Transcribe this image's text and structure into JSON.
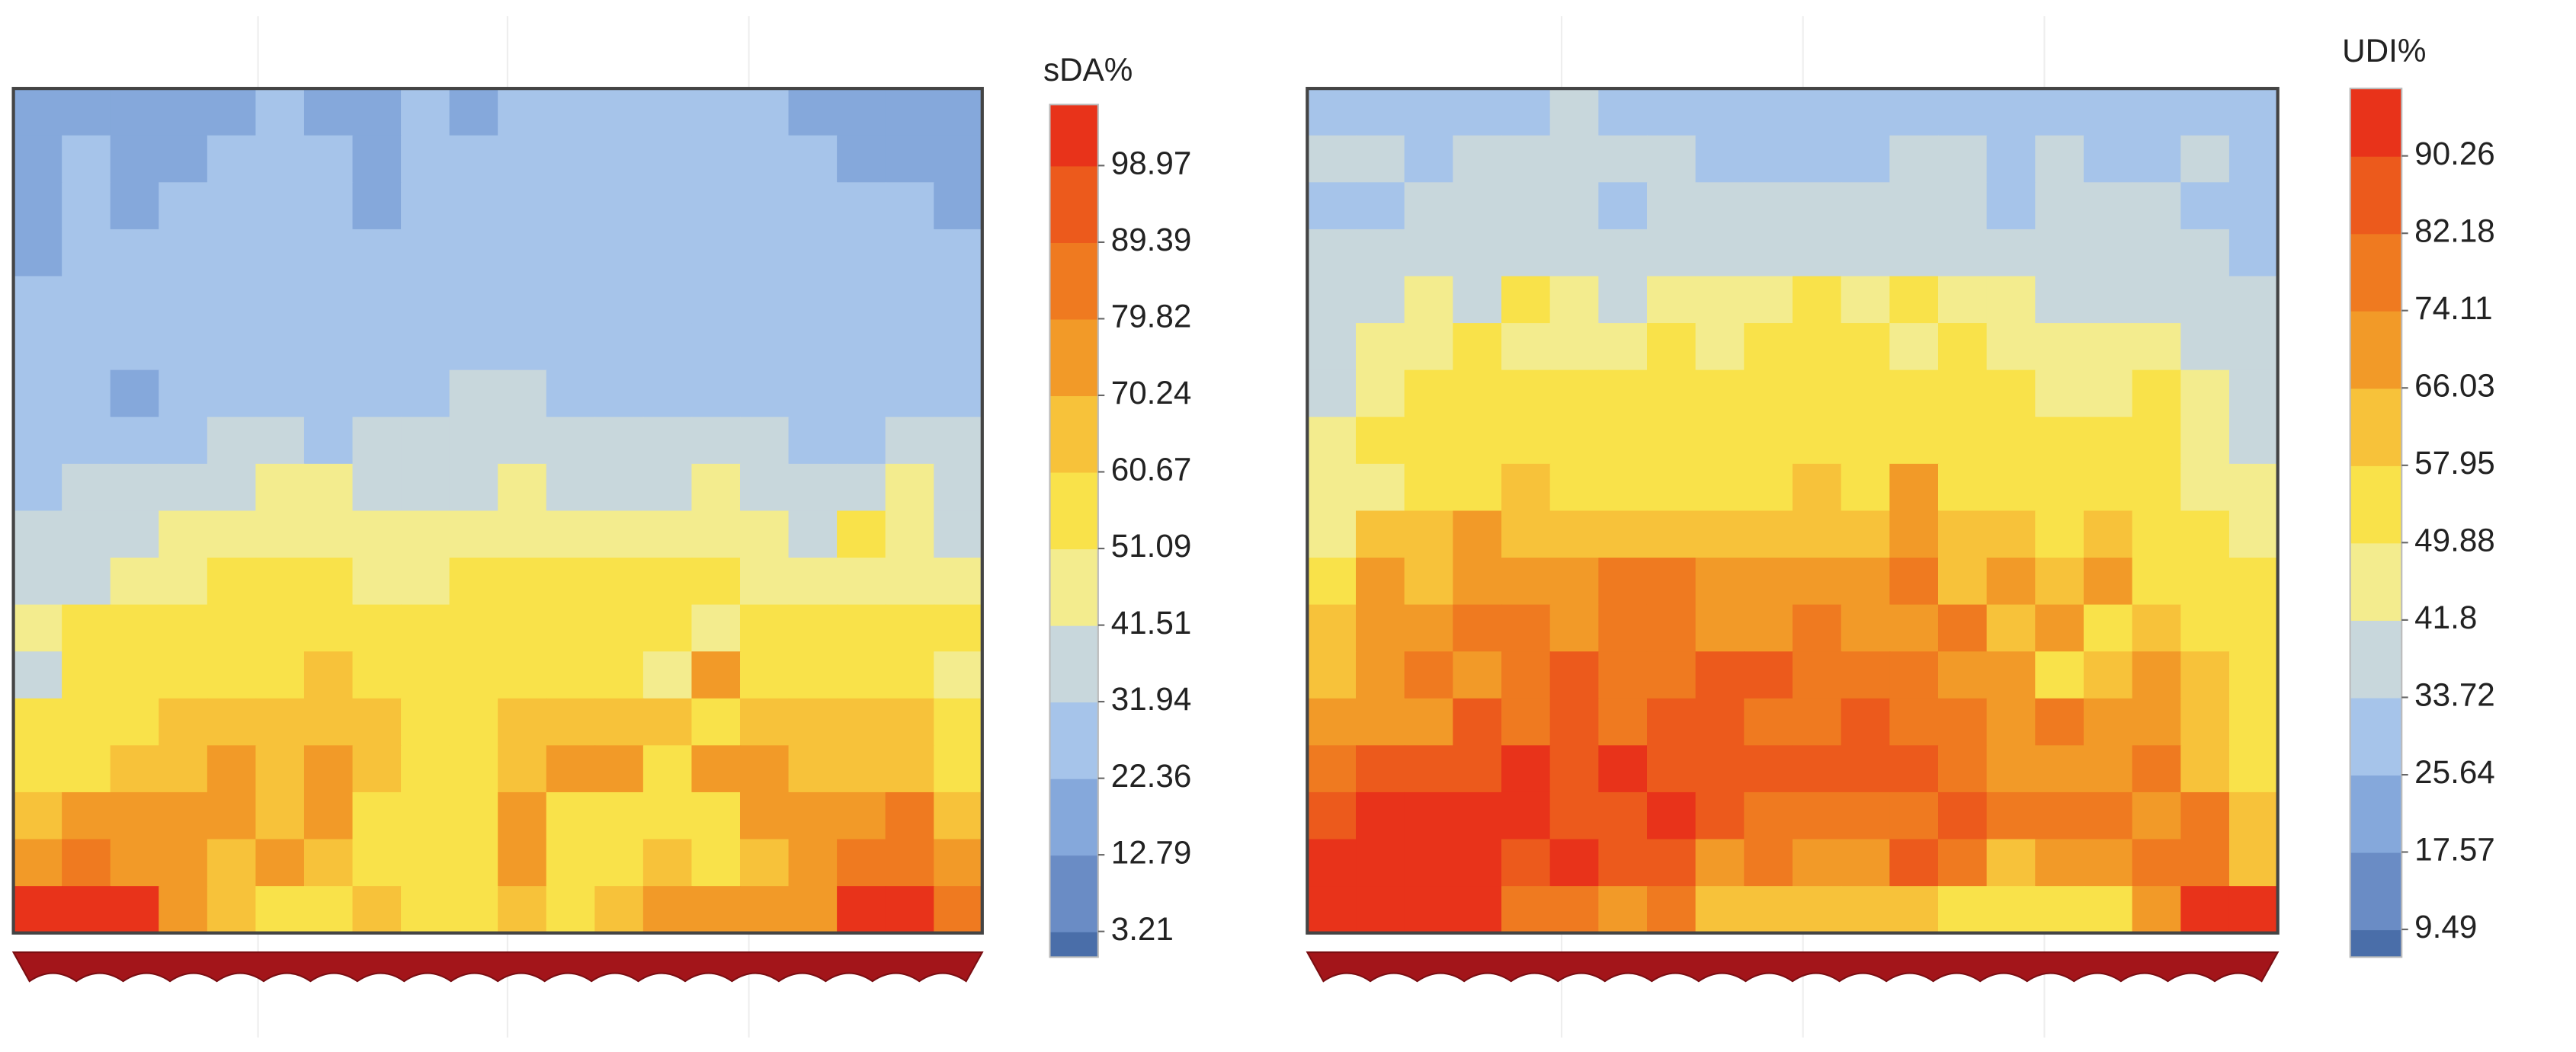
{
  "chart_data": [
    {
      "type": "heatmap",
      "title": "sDA%",
      "clim": [
        0,
        106.6
      ],
      "colorbar_ticks": [
        3.21,
        12.79,
        22.36,
        31.94,
        41.51,
        51.09,
        60.67,
        70.24,
        79.82,
        89.39,
        98.97
      ],
      "colors": [
        "#4a6ea9",
        "#6a8cc5",
        "#85a8db",
        "#a6c4ea",
        "#c8d7dc",
        "#f3ec8e",
        "#f9e24a",
        "#f7c23a",
        "#f29a28",
        "#ef7a20",
        "#ec5a1c",
        "#e8331a"
      ],
      "values": [
        [
          20,
          22,
          18,
          20,
          22,
          25,
          20,
          22,
          25,
          18,
          25,
          25,
          25,
          25,
          25,
          25,
          22,
          20,
          20,
          20
        ],
        [
          22,
          25,
          20,
          22,
          25,
          25,
          25,
          22,
          25,
          25,
          25,
          25,
          25,
          25,
          25,
          25,
          25,
          18,
          22,
          20
        ],
        [
          20,
          25,
          20,
          25,
          25,
          25,
          25,
          18,
          25,
          25,
          25,
          25,
          25,
          28,
          25,
          25,
          25,
          25,
          25,
          22
        ],
        [
          22,
          25,
          25,
          25,
          25,
          28,
          25,
          25,
          28,
          25,
          25,
          25,
          25,
          25,
          25,
          25,
          25,
          25,
          25,
          25
        ],
        [
          25,
          25,
          25,
          28,
          25,
          25,
          28,
          25,
          25,
          25,
          28,
          25,
          25,
          25,
          28,
          25,
          25,
          25,
          28,
          25
        ],
        [
          25,
          28,
          25,
          25,
          28,
          25,
          28,
          28,
          28,
          28,
          25,
          28,
          25,
          28,
          28,
          28,
          28,
          28,
          28,
          28
        ],
        [
          25,
          28,
          22,
          28,
          28,
          30,
          28,
          28,
          28,
          35,
          35,
          28,
          28,
          28,
          28,
          30,
          28,
          28,
          28,
          30
        ],
        [
          28,
          28,
          30,
          30,
          35,
          35,
          30,
          35,
          35,
          35,
          35,
          35,
          35,
          35,
          35,
          35,
          30,
          30,
          35,
          35
        ],
        [
          30,
          35,
          35,
          35,
          35,
          45,
          45,
          35,
          35,
          35,
          45,
          35,
          35,
          35,
          45,
          35,
          35,
          35,
          45,
          35
        ],
        [
          35,
          35,
          35,
          45,
          45,
          45,
          45,
          45,
          45,
          45,
          45,
          45,
          45,
          45,
          45,
          45,
          35,
          55,
          45,
          35
        ],
        [
          35,
          35,
          45,
          45,
          55,
          55,
          55,
          45,
          45,
          55,
          55,
          55,
          55,
          55,
          55,
          45,
          45,
          45,
          45,
          45
        ],
        [
          45,
          55,
          55,
          55,
          55,
          55,
          55,
          55,
          55,
          55,
          55,
          55,
          55,
          55,
          45,
          55,
          55,
          55,
          55,
          55
        ],
        [
          35,
          55,
          55,
          55,
          55,
          55,
          65,
          55,
          55,
          55,
          55,
          55,
          55,
          45,
          75,
          55,
          55,
          55,
          55,
          45
        ],
        [
          55,
          55,
          55,
          65,
          65,
          65,
          70,
          65,
          55,
          55,
          65,
          65,
          65,
          65,
          55,
          65,
          65,
          65,
          65,
          55
        ],
        [
          55,
          55,
          65,
          65,
          75,
          65,
          75,
          65,
          55,
          55,
          65,
          75,
          75,
          55,
          75,
          75,
          65,
          65,
          65,
          55
        ],
        [
          65,
          75,
          75,
          75,
          75,
          65,
          75,
          55,
          55,
          55,
          75,
          55,
          55,
          55,
          55,
          75,
          75,
          75,
          80,
          65
        ],
        [
          75,
          80,
          75,
          75,
          65,
          75,
          65,
          55,
          55,
          55,
          75,
          55,
          55,
          65,
          55,
          65,
          75,
          80,
          80,
          75
        ],
        [
          100,
          100,
          100,
          75,
          65,
          55,
          55,
          65,
          55,
          55,
          65,
          55,
          65,
          75,
          75,
          75,
          75,
          100,
          100,
          80
        ]
      ]
    },
    {
      "type": "heatmap",
      "title": "UDI%",
      "clim": [
        6.6,
        97.3
      ],
      "colorbar_ticks": [
        9.49,
        17.57,
        25.64,
        33.72,
        41.8,
        49.88,
        57.95,
        66.03,
        74.11,
        82.18,
        90.26
      ],
      "colors": [
        "#4a6ea9",
        "#6a8cc5",
        "#85a8db",
        "#a6c4ea",
        "#c8d7dc",
        "#f3ec8e",
        "#f9e24a",
        "#f7c23a",
        "#f29a28",
        "#ef7a20",
        "#ec5a1c",
        "#e8331a"
      ],
      "values": [
        [
          30,
          30,
          30,
          30,
          30,
          38,
          30,
          30,
          30,
          30,
          30,
          30,
          30,
          30,
          30,
          30,
          30,
          30,
          30,
          30
        ],
        [
          38,
          38,
          30,
          38,
          38,
          38,
          38,
          38,
          30,
          30,
          30,
          30,
          38,
          38,
          30,
          38,
          30,
          30,
          38,
          30
        ],
        [
          30,
          30,
          38,
          38,
          38,
          38,
          30,
          38,
          38,
          38,
          38,
          38,
          38,
          38,
          30,
          38,
          38,
          38,
          30,
          30
        ],
        [
          38,
          38,
          38,
          38,
          38,
          38,
          38,
          38,
          38,
          38,
          38,
          38,
          38,
          38,
          38,
          38,
          38,
          38,
          38,
          30
        ],
        [
          38,
          38,
          45,
          38,
          54,
          45,
          38,
          45,
          45,
          45,
          54,
          45,
          54,
          45,
          45,
          38,
          38,
          38,
          38,
          38
        ],
        [
          38,
          45,
          45,
          54,
          45,
          45,
          45,
          54,
          45,
          54,
          54,
          54,
          45,
          54,
          45,
          45,
          45,
          45,
          38,
          38
        ],
        [
          38,
          45,
          54,
          54,
          54,
          54,
          54,
          54,
          54,
          54,
          54,
          54,
          54,
          54,
          54,
          45,
          45,
          54,
          45,
          38
        ],
        [
          45,
          54,
          54,
          54,
          54,
          54,
          54,
          54,
          54,
          54,
          54,
          54,
          54,
          54,
          54,
          54,
          54,
          54,
          45,
          38
        ],
        [
          45,
          45,
          54,
          54,
          62,
          54,
          54,
          54,
          54,
          54,
          62,
          54,
          70,
          54,
          54,
          54,
          54,
          54,
          45,
          45
        ],
        [
          45,
          62,
          62,
          70,
          62,
          62,
          62,
          62,
          62,
          62,
          62,
          62,
          70,
          62,
          62,
          54,
          62,
          54,
          54,
          45
        ],
        [
          54,
          70,
          62,
          70,
          70,
          70,
          78,
          78,
          70,
          70,
          70,
          70,
          78,
          62,
          70,
          62,
          70,
          54,
          54,
          54
        ],
        [
          62,
          70,
          70,
          78,
          78,
          70,
          78,
          78,
          70,
          70,
          78,
          70,
          70,
          78,
          62,
          70,
          54,
          62,
          54,
          54
        ],
        [
          62,
          70,
          78,
          70,
          78,
          86,
          78,
          78,
          86,
          86,
          78,
          78,
          78,
          70,
          70,
          54,
          62,
          70,
          62,
          54
        ],
        [
          70,
          70,
          70,
          86,
          78,
          86,
          78,
          86,
          86,
          78,
          78,
          86,
          78,
          78,
          70,
          78,
          70,
          70,
          62,
          54
        ],
        [
          78,
          86,
          86,
          86,
          94,
          86,
          94,
          86,
          86,
          86,
          86,
          86,
          86,
          78,
          70,
          70,
          70,
          78,
          62,
          54
        ],
        [
          86,
          94,
          94,
          94,
          94,
          86,
          86,
          94,
          86,
          78,
          78,
          78,
          78,
          86,
          78,
          78,
          78,
          70,
          78,
          62
        ],
        [
          94,
          94,
          94,
          94,
          86,
          94,
          86,
          86,
          70,
          78,
          70,
          70,
          86,
          78,
          62,
          70,
          70,
          78,
          78,
          62
        ],
        [
          94,
          94,
          94,
          94,
          78,
          78,
          70,
          78,
          62,
          62,
          62,
          62,
          62,
          54,
          54,
          54,
          54,
          70,
          94,
          94
        ]
      ]
    }
  ]
}
